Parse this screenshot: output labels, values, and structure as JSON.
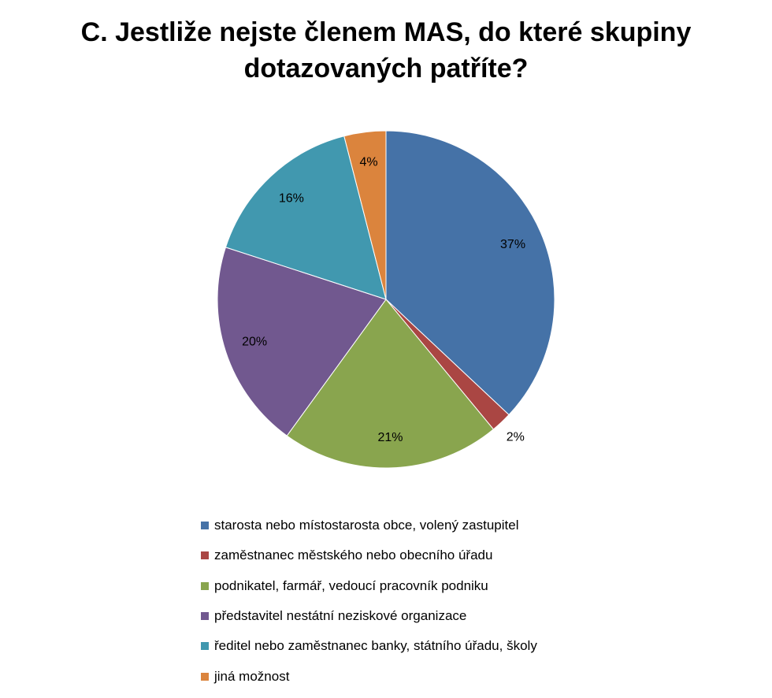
{
  "chart_data": {
    "type": "pie",
    "title_lines": [
      "C. Jestliže nejste členem MAS, do které skupiny",
      "dotazovaných patříte?"
    ],
    "slices": [
      {
        "label": "starosta nebo místostarosta obce, volený zastupitel",
        "value": 37,
        "value_label": "37%",
        "color": "#4572A7"
      },
      {
        "label": "zaměstnanec městského nebo obecního úřadu",
        "value": 2,
        "value_label": "2%",
        "color": "#AA4643"
      },
      {
        "label": "podnikatel, farmář, vedoucí pracovník podniku",
        "value": 21,
        "value_label": "21%",
        "color": "#89A54E"
      },
      {
        "label": "představitel nestátní neziskové organizace",
        "value": 20,
        "value_label": "20%",
        "color": "#71588F"
      },
      {
        "label": "ředitel nebo zaměstnanec banky, státního úřadu, školy",
        "value": 16,
        "value_label": "16%",
        "color": "#4198AF"
      },
      {
        "label": "jiná možnost",
        "value": 4,
        "value_label": "4%",
        "color": "#DB843D"
      }
    ],
    "legend_position": "bottom"
  }
}
